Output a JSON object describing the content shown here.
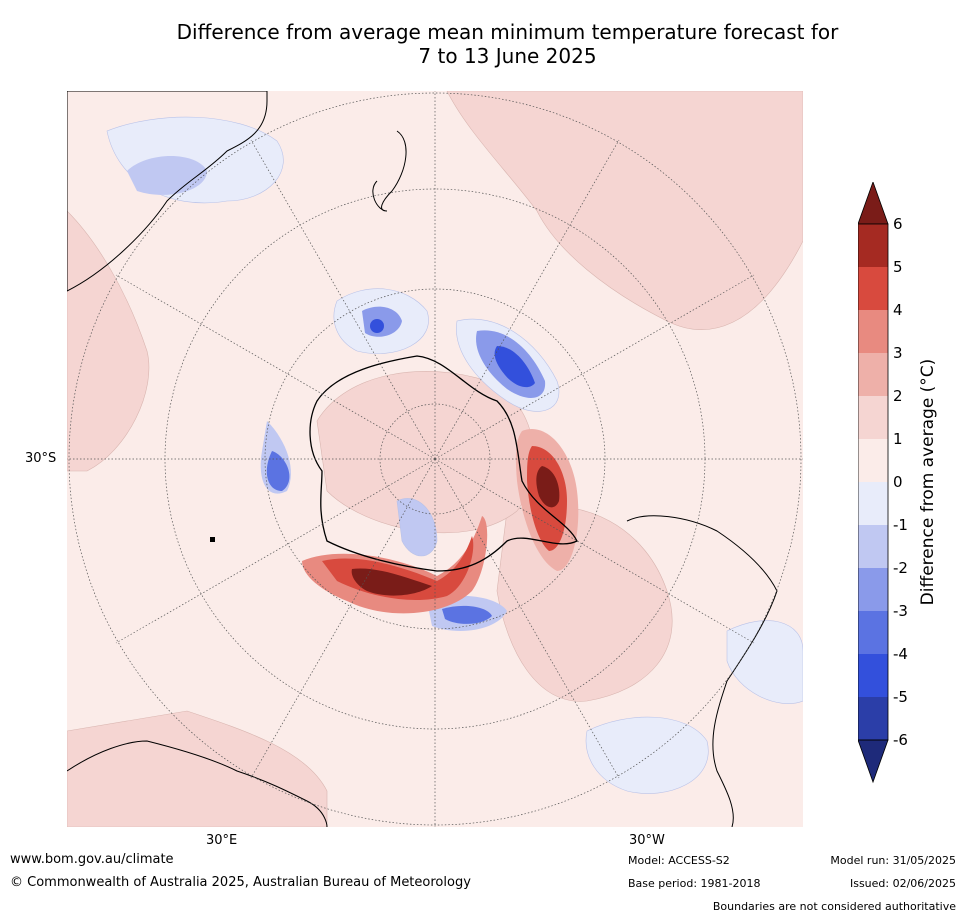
{
  "title_line1": "Difference from average mean minimum temperature forecast for",
  "title_line2": "7 to 13 June 2025",
  "lat_labels": {
    "left": "30°S",
    "bottom_left": "30°E",
    "bottom_right": "30°W"
  },
  "colorbar": {
    "label": "Difference from average (°C)",
    "ticks": [
      "6",
      "5",
      "4",
      "3",
      "2",
      "1",
      "0",
      "-1",
      "-2",
      "-3",
      "-4",
      "-5",
      "-6"
    ],
    "colors": {
      "gt6": "#7a1c18",
      "5_6": "#a52a22",
      "4_5": "#d84a3e",
      "3_4": "#e88a80",
      "2_3": "#eeb0a9",
      "1_2": "#f5d5d2",
      "0_1": "#fbece9",
      "m1_0": "#e8ecfa",
      "m2_m1": "#c0c8f2",
      "m3_m2": "#8a9aea",
      "m4_m3": "#5b73e2",
      "m5_m4": "#3350dc",
      "m6_m5": "#2b3ea8",
      "lt_m6": "#1e2a7a"
    }
  },
  "footer": {
    "website": "www.bom.gov.au/climate",
    "copyright": "© Commonwealth of Australia 2025, Australian Bureau of Meteorology",
    "model": "Model: ACCESS-S2",
    "base_period": "Base period: 1981-2018",
    "model_run": "Model run: 31/05/2025",
    "issued": "Issued: 02/06/2025",
    "disclaimer": "Boundaries are not considered authoritative"
  }
}
